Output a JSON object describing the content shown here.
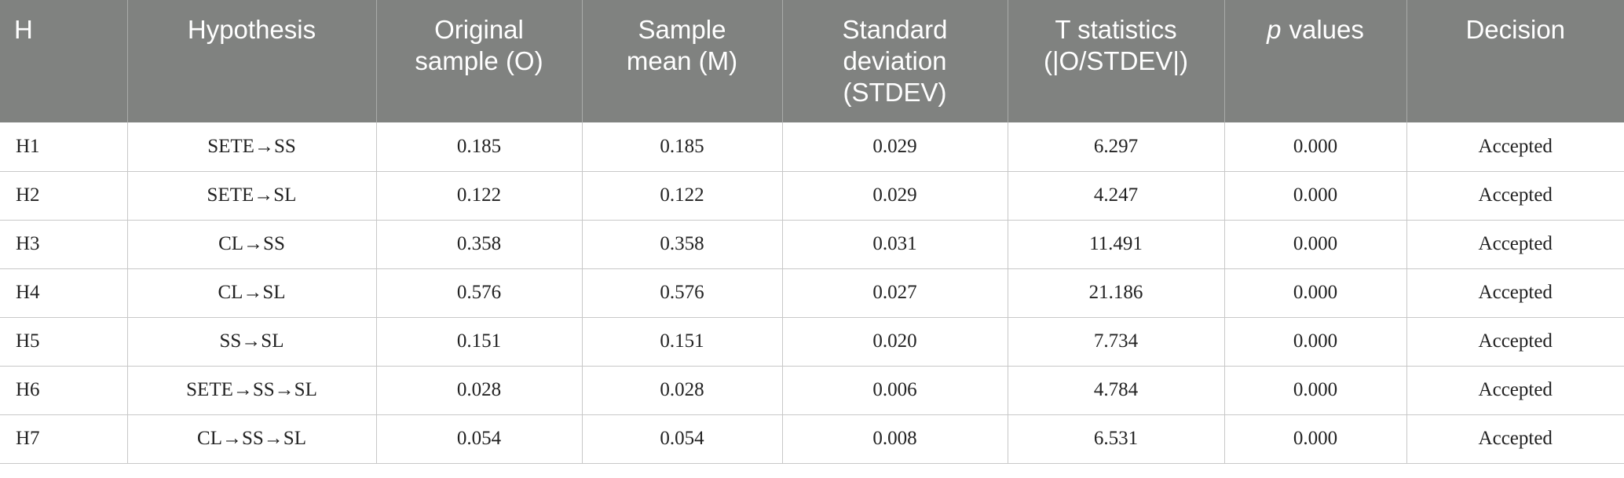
{
  "table": {
    "header": [
      [
        "H"
      ],
      [
        "Hypothesis"
      ],
      [
        "Original",
        "sample (O)"
      ],
      [
        "Sample",
        "mean (M)"
      ],
      [
        "Standard",
        "deviation",
        "(STDEV)"
      ],
      [
        "T statistics",
        "(|O/STDEV|)"
      ],
      [
        "p",
        "values"
      ],
      [
        "Decision"
      ]
    ],
    "rows": [
      [
        "H1",
        "SETE→SS",
        "0.185",
        "0.185",
        "0.029",
        "6.297",
        "0.000",
        "Accepted"
      ],
      [
        "H2",
        "SETE→SL",
        "0.122",
        "0.122",
        "0.029",
        "4.247",
        "0.000",
        "Accepted"
      ],
      [
        "H3",
        "CL→SS",
        "0.358",
        "0.358",
        "0.031",
        "11.491",
        "0.000",
        "Accepted"
      ],
      [
        "H4",
        "CL→SL",
        "0.576",
        "0.576",
        "0.027",
        "21.186",
        "0.000",
        "Accepted"
      ],
      [
        "H5",
        "SS→SL",
        "0.151",
        "0.151",
        "0.020",
        "7.734",
        "0.000",
        "Accepted"
      ],
      [
        "H6",
        "SETE→SS→SL",
        "0.028",
        "0.028",
        "0.006",
        "4.784",
        "0.000",
        "Accepted"
      ],
      [
        "H7",
        "CL→SS→SL",
        "0.054",
        "0.054",
        "0.008",
        "6.531",
        "0.000",
        "Accepted"
      ]
    ]
  }
}
